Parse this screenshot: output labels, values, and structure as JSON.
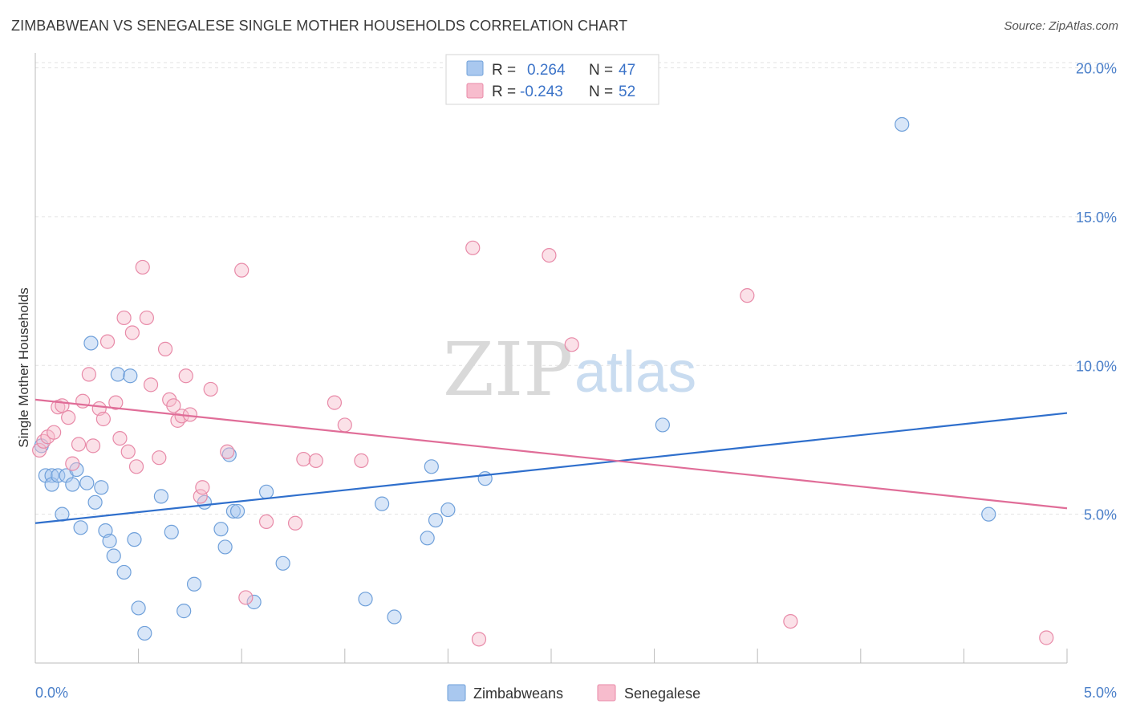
{
  "header": {
    "title": "ZIMBABWEAN VS SENEGALESE SINGLE MOTHER HOUSEHOLDS CORRELATION CHART",
    "source": "Source: ZipAtlas.com"
  },
  "watermark": {
    "zip": "ZIP",
    "atlas": "atlas"
  },
  "legend_box": {
    "rows": [
      {
        "r_label": "R =",
        "r_value": "0.264",
        "n_label": "N =",
        "n_value": "47",
        "color": "#a9c8ef",
        "stroke": "#6fa0da"
      },
      {
        "r_label": "R =",
        "r_value": "-0.243",
        "n_label": "N =",
        "n_value": "52",
        "color": "#f7bccd",
        "stroke": "#e88aa8"
      }
    ]
  },
  "bottom_legend": {
    "items": [
      {
        "label": "Zimbabweans",
        "color": "#a9c8ef",
        "stroke": "#6fa0da"
      },
      {
        "label": "Senegalese",
        "color": "#f7bccd",
        "stroke": "#e88aa8"
      }
    ]
  },
  "colors": {
    "blue_fill": "rgba(169,200,239,0.45)",
    "blue_stroke": "#6fa0da",
    "blue_line": "#2f6fcc",
    "pink_fill": "rgba(247,188,205,0.45)",
    "pink_stroke": "#e88aa8",
    "pink_line": "#e06d98",
    "grid": "#e3e3e3",
    "tick": "#4a7fc9"
  },
  "chart_data": {
    "type": "scatter",
    "title": "ZIMBABWEAN VS SENEGALESE SINGLE MOTHER HOUSEHOLDS CORRELATION CHART",
    "xlabel": "",
    "ylabel": "Single Mother Households",
    "xlim": [
      0,
      5
    ],
    "ylim": [
      0,
      20.5
    ],
    "x_tick_labels": [
      "0.0%",
      "5.0%"
    ],
    "x_tick_values": [
      0,
      5
    ],
    "y_tick_labels": [
      "5.0%",
      "10.0%",
      "15.0%",
      "20.0%"
    ],
    "y_tick_values": [
      5,
      10,
      15,
      20
    ],
    "grid": true,
    "legend_position": "top-center",
    "series": [
      {
        "name": "Zimbabweans",
        "r": 0.264,
        "n": 47,
        "trend": {
          "x": [
            0,
            5
          ],
          "y": [
            4.7,
            8.4
          ]
        },
        "points": [
          {
            "x": 0.03,
            "y": 7.3
          },
          {
            "x": 0.05,
            "y": 6.3
          },
          {
            "x": 0.08,
            "y": 6.3
          },
          {
            "x": 0.08,
            "y": 6.0
          },
          {
            "x": 0.11,
            "y": 6.3
          },
          {
            "x": 0.13,
            "y": 5.0
          },
          {
            "x": 0.15,
            "y": 6.3
          },
          {
            "x": 0.18,
            "y": 6.0
          },
          {
            "x": 0.2,
            "y": 6.5
          },
          {
            "x": 0.22,
            "y": 4.55
          },
          {
            "x": 0.25,
            "y": 6.05
          },
          {
            "x": 0.27,
            "y": 10.75
          },
          {
            "x": 0.29,
            "y": 5.4
          },
          {
            "x": 0.32,
            "y": 5.9
          },
          {
            "x": 0.34,
            "y": 4.45
          },
          {
            "x": 0.36,
            "y": 4.1
          },
          {
            "x": 0.38,
            "y": 3.6
          },
          {
            "x": 0.4,
            "y": 9.7
          },
          {
            "x": 0.43,
            "y": 3.05
          },
          {
            "x": 0.46,
            "y": 9.65
          },
          {
            "x": 0.48,
            "y": 4.15
          },
          {
            "x": 0.5,
            "y": 1.85
          },
          {
            "x": 0.53,
            "y": 1.0
          },
          {
            "x": 0.61,
            "y": 5.6
          },
          {
            "x": 0.66,
            "y": 4.4
          },
          {
            "x": 0.72,
            "y": 1.75
          },
          {
            "x": 0.77,
            "y": 2.65
          },
          {
            "x": 0.82,
            "y": 5.4
          },
          {
            "x": 0.9,
            "y": 4.5
          },
          {
            "x": 0.92,
            "y": 3.9
          },
          {
            "x": 0.94,
            "y": 7.0
          },
          {
            "x": 0.96,
            "y": 5.1
          },
          {
            "x": 0.98,
            "y": 5.1
          },
          {
            "x": 1.06,
            "y": 2.05
          },
          {
            "x": 1.12,
            "y": 5.75
          },
          {
            "x": 1.2,
            "y": 3.35
          },
          {
            "x": 1.6,
            "y": 2.15
          },
          {
            "x": 1.68,
            "y": 5.35
          },
          {
            "x": 1.74,
            "y": 1.55
          },
          {
            "x": 1.9,
            "y": 4.2
          },
          {
            "x": 1.92,
            "y": 6.6
          },
          {
            "x": 1.94,
            "y": 4.8
          },
          {
            "x": 2.0,
            "y": 5.15
          },
          {
            "x": 2.18,
            "y": 6.2
          },
          {
            "x": 3.04,
            "y": 8.0
          },
          {
            "x": 4.2,
            "y": 18.1
          },
          {
            "x": 4.62,
            "y": 5.0
          }
        ]
      },
      {
        "name": "Senegalese",
        "r": -0.243,
        "n": 52,
        "trend": {
          "x": [
            0,
            5
          ],
          "y": [
            8.85,
            5.2
          ]
        },
        "points": [
          {
            "x": 0.02,
            "y": 7.15
          },
          {
            "x": 0.04,
            "y": 7.45
          },
          {
            "x": 0.06,
            "y": 7.6
          },
          {
            "x": 0.09,
            "y": 7.75
          },
          {
            "x": 0.11,
            "y": 8.6
          },
          {
            "x": 0.13,
            "y": 8.65
          },
          {
            "x": 0.16,
            "y": 8.25
          },
          {
            "x": 0.18,
            "y": 6.7
          },
          {
            "x": 0.21,
            "y": 7.35
          },
          {
            "x": 0.23,
            "y": 8.8
          },
          {
            "x": 0.26,
            "y": 9.7
          },
          {
            "x": 0.28,
            "y": 7.3
          },
          {
            "x": 0.31,
            "y": 8.55
          },
          {
            "x": 0.33,
            "y": 8.2
          },
          {
            "x": 0.35,
            "y": 10.8
          },
          {
            "x": 0.39,
            "y": 8.75
          },
          {
            "x": 0.41,
            "y": 7.55
          },
          {
            "x": 0.43,
            "y": 11.6
          },
          {
            "x": 0.45,
            "y": 7.1
          },
          {
            "x": 0.47,
            "y": 11.1
          },
          {
            "x": 0.49,
            "y": 6.6
          },
          {
            "x": 0.52,
            "y": 13.3
          },
          {
            "x": 0.54,
            "y": 11.6
          },
          {
            "x": 0.56,
            "y": 9.35
          },
          {
            "x": 0.6,
            "y": 6.9
          },
          {
            "x": 0.63,
            "y": 10.55
          },
          {
            "x": 0.65,
            "y": 8.85
          },
          {
            "x": 0.67,
            "y": 8.65
          },
          {
            "x": 0.69,
            "y": 8.15
          },
          {
            "x": 0.71,
            "y": 8.3
          },
          {
            "x": 0.73,
            "y": 9.65
          },
          {
            "x": 0.75,
            "y": 8.35
          },
          {
            "x": 0.8,
            "y": 5.6
          },
          {
            "x": 0.81,
            "y": 5.9
          },
          {
            "x": 0.85,
            "y": 9.2
          },
          {
            "x": 0.93,
            "y": 7.1
          },
          {
            "x": 1.0,
            "y": 13.2
          },
          {
            "x": 1.02,
            "y": 2.2
          },
          {
            "x": 1.12,
            "y": 4.75
          },
          {
            "x": 1.26,
            "y": 4.7
          },
          {
            "x": 1.3,
            "y": 6.85
          },
          {
            "x": 1.36,
            "y": 6.8
          },
          {
            "x": 1.45,
            "y": 8.75
          },
          {
            "x": 1.5,
            "y": 8.0
          },
          {
            "x": 1.58,
            "y": 6.8
          },
          {
            "x": 2.12,
            "y": 13.95
          },
          {
            "x": 2.15,
            "y": 0.8
          },
          {
            "x": 2.49,
            "y": 13.7
          },
          {
            "x": 2.6,
            "y": 10.7
          },
          {
            "x": 3.45,
            "y": 12.35
          },
          {
            "x": 3.66,
            "y": 1.4
          },
          {
            "x": 4.9,
            "y": 0.85
          }
        ]
      }
    ]
  }
}
